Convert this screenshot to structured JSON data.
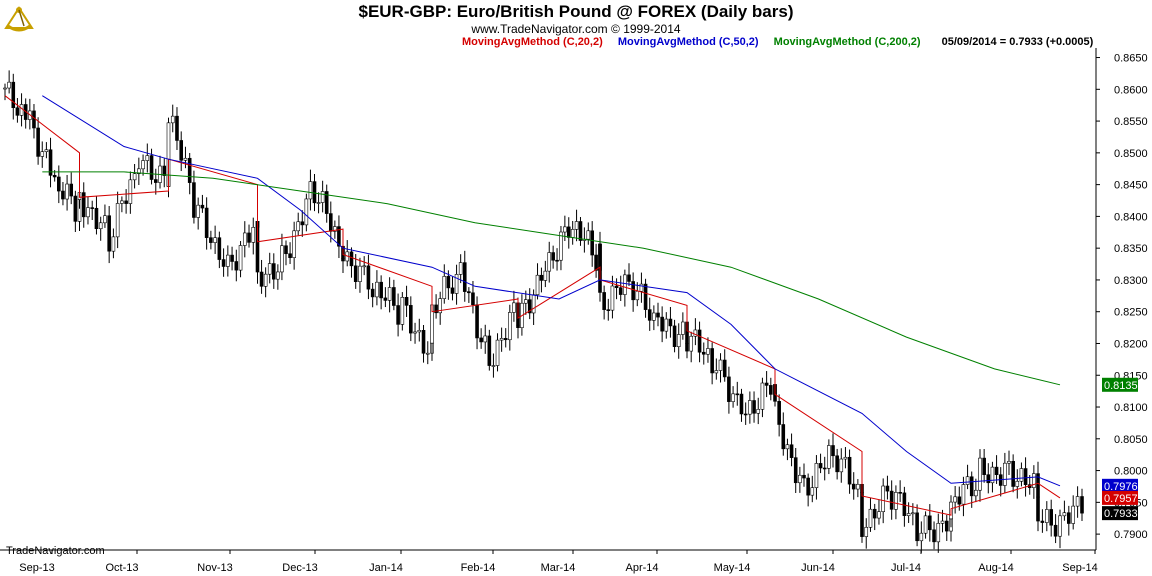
{
  "header": {
    "title": "$EUR-GBP:  Euro/British Pound @ FOREX  (Daily bars)",
    "subtitle": "www.TradeNavigator.com © 1999-2014"
  },
  "legend": [
    {
      "label": "MovingAvgMethod (C,20,2)",
      "color": "#d40000"
    },
    {
      "label": "MovingAvgMethod (C,50,2)",
      "color": "#0000cc"
    },
    {
      "label": "MovingAvgMethod (C,200,2)",
      "color": "#008000"
    }
  ],
  "readout": "05/09/2014 = 0.7933 (+0.0005)",
  "footer": "TradeNavigator.com",
  "colors": {
    "price": "#000000",
    "ma20": "#d40000",
    "ma50": "#0000cc",
    "ma200": "#008000",
    "axis": "#000000"
  },
  "icons": {
    "logo": "sextant-logo-icon"
  },
  "chart_data": {
    "type": "candlestick",
    "ylim": [
      0.7875,
      0.8665
    ],
    "y_ticks": [
      "0.8650",
      "0.8600",
      "0.8550",
      "0.8500",
      "0.8450",
      "0.8400",
      "0.8350",
      "0.8300",
      "0.8250",
      "0.8200",
      "0.8150",
      "0.8100",
      "0.8050",
      "0.8000",
      "0.7950",
      "0.7900"
    ],
    "x_ticks": [
      "Sep-13",
      "Oct-13",
      "Nov-13",
      "Dec-13",
      "Jan-14",
      "Feb-14",
      "Mar-14",
      "Apr-14",
      "May-14",
      "Jun-14",
      "Jul-14",
      "Aug-14",
      "Sep-14"
    ],
    "price_close_path": [
      [
        "Sep-13",
        0.859
      ],
      [
        "Sep-13",
        0.856
      ],
      [
        "Sep-13",
        0.845
      ],
      [
        "Sep-13",
        0.84
      ],
      [
        "Oct-13",
        0.844
      ],
      [
        "Oct-13",
        0.836
      ],
      [
        "Oct-13",
        0.848
      ],
      [
        "Oct-13",
        0.847
      ],
      [
        "Nov-13",
        0.856
      ],
      [
        "Nov-13",
        0.84
      ],
      [
        "Nov-13",
        0.833
      ],
      [
        "Nov-13",
        0.838
      ],
      [
        "Dec-13",
        0.829
      ],
      [
        "Dec-13",
        0.835
      ],
      [
        "Dec-13",
        0.844
      ],
      [
        "Dec-13",
        0.834
      ],
      [
        "Jan-14",
        0.835
      ],
      [
        "Jan-14",
        0.828
      ],
      [
        "Jan-14",
        0.825
      ],
      [
        "Jan-14",
        0.819
      ],
      [
        "Feb-14",
        0.825
      ],
      [
        "Feb-14",
        0.831
      ],
      [
        "Feb-14",
        0.818
      ],
      [
        "Feb-14",
        0.825
      ],
      [
        "Mar-14",
        0.823
      ],
      [
        "Mar-14",
        0.833
      ],
      [
        "Mar-14",
        0.838
      ],
      [
        "Mar-14",
        0.833
      ],
      [
        "Apr-14",
        0.827
      ],
      [
        "Apr-14",
        0.829
      ],
      [
        "Apr-14",
        0.823
      ],
      [
        "Apr-14",
        0.822
      ],
      [
        "May-14",
        0.821
      ],
      [
        "May-14",
        0.816
      ],
      [
        "May-14",
        0.81
      ],
      [
        "May-14",
        0.813
      ],
      [
        "Jun-14",
        0.808
      ],
      [
        "Jun-14",
        0.798
      ],
      [
        "Jun-14",
        0.802
      ],
      [
        "Jun-14",
        0.796
      ],
      [
        "Jul-14",
        0.792
      ],
      [
        "Jul-14",
        0.796
      ],
      [
        "Jul-14",
        0.79
      ],
      [
        "Jul-14",
        0.793
      ],
      [
        "Aug-14",
        0.794
      ],
      [
        "Aug-14",
        0.799
      ],
      [
        "Aug-14",
        0.801
      ],
      [
        "Aug-14",
        0.796
      ],
      [
        "Sep-14",
        0.792
      ],
      [
        "Sep-14",
        0.7933
      ]
    ],
    "series": [
      {
        "name": "MovingAvgMethod (C,20,2)",
        "last": "0.7957",
        "values": [
          [
            "Sep-13",
            0.859
          ],
          [
            "Sep-13",
            0.85
          ],
          [
            "Oct-13",
            0.843
          ],
          [
            "Oct-13",
            0.844
          ],
          [
            "Nov-13",
            0.849
          ],
          [
            "Nov-13",
            0.845
          ],
          [
            "Dec-13",
            0.836
          ],
          [
            "Dec-13",
            0.838
          ],
          [
            "Jan-14",
            0.834
          ],
          [
            "Jan-14",
            0.829
          ],
          [
            "Feb-14",
            0.825
          ],
          [
            "Feb-14",
            0.827
          ],
          [
            "Mar-14",
            0.824
          ],
          [
            "Mar-14",
            0.832
          ],
          [
            "Apr-14",
            0.83
          ],
          [
            "Apr-14",
            0.826
          ],
          [
            "May-14",
            0.822
          ],
          [
            "May-14",
            0.816
          ],
          [
            "Jun-14",
            0.812
          ],
          [
            "Jun-14",
            0.803
          ],
          [
            "Jul-14",
            0.796
          ],
          [
            "Jul-14",
            0.793
          ],
          [
            "Aug-14",
            0.794
          ],
          [
            "Aug-14",
            0.798
          ],
          [
            "Sep-14",
            0.7957
          ]
        ]
      },
      {
        "name": "MovingAvgMethod (C,50,2)",
        "last": "0.7976",
        "values": [
          [
            "Sep-13",
            0.859
          ],
          [
            "Oct-13",
            0.851
          ],
          [
            "Nov-13",
            0.849
          ],
          [
            "Nov-13",
            0.846
          ],
          [
            "Dec-13",
            0.841
          ],
          [
            "Jan-14",
            0.835
          ],
          [
            "Jan-14",
            0.832
          ],
          [
            "Feb-14",
            0.829
          ],
          [
            "Mar-14",
            0.827
          ],
          [
            "Apr-14",
            0.83
          ],
          [
            "Apr-14",
            0.828
          ],
          [
            "May-14",
            0.823
          ],
          [
            "Jun-14",
            0.816
          ],
          [
            "Jun-14",
            0.809
          ],
          [
            "Jul-14",
            0.803
          ],
          [
            "Aug-14",
            0.798
          ],
          [
            "Aug-14",
            0.799
          ],
          [
            "Sep-14",
            0.7976
          ]
        ]
      },
      {
        "name": "MovingAvgMethod (C,200,2)",
        "last": "0.8135",
        "values": [
          [
            "Sep-13",
            0.847
          ],
          [
            "Oct-13",
            0.847
          ],
          [
            "Nov-13",
            0.846
          ],
          [
            "Dec-13",
            0.844
          ],
          [
            "Jan-14",
            0.842
          ],
          [
            "Feb-14",
            0.839
          ],
          [
            "Mar-14",
            0.837
          ],
          [
            "Apr-14",
            0.835
          ],
          [
            "May-14",
            0.832
          ],
          [
            "Jun-14",
            0.827
          ],
          [
            "Jul-14",
            0.821
          ],
          [
            "Aug-14",
            0.816
          ],
          [
            "Sep-14",
            0.8135
          ]
        ]
      }
    ],
    "last_close": "0.7933",
    "grid": false
  }
}
